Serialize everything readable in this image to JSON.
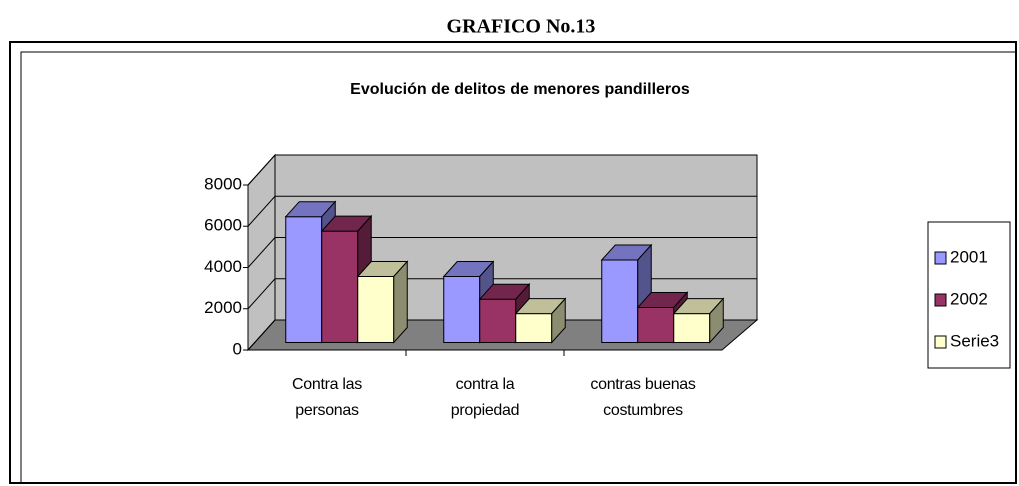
{
  "figure_label": "GRAFICO No.13",
  "chart_data": {
    "type": "bar",
    "title": "Evolución de delitos de menores pandilleros",
    "categories": [
      "Contra las personas",
      "contra la propiedad",
      "contras buenas costumbres"
    ],
    "series": [
      {
        "name": "2001",
        "color": "#9999ff",
        "values": [
          6100,
          3200,
          4000
        ]
      },
      {
        "name": "2002",
        "color": "#993366",
        "values": [
          5400,
          2100,
          1700
        ]
      },
      {
        "name": "Serie3",
        "color": "#ffffcc",
        "values": [
          3200,
          1400,
          1400
        ]
      }
    ],
    "ylim": [
      0,
      8000
    ],
    "yticks": [
      0,
      2000,
      4000,
      6000,
      8000
    ],
    "grid": true,
    "legend": "right"
  }
}
